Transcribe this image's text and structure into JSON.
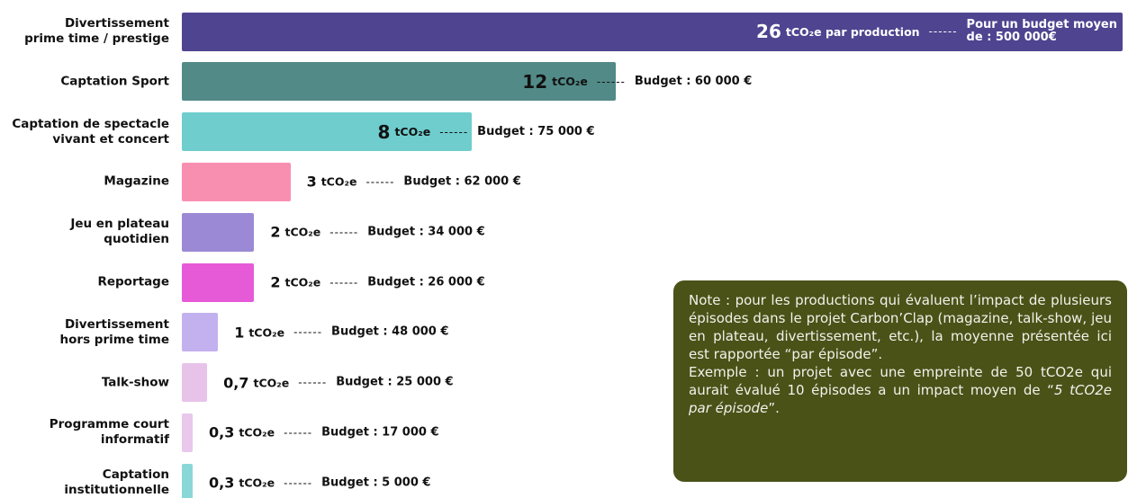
{
  "chart_data": {
    "type": "bar",
    "orientation": "horizontal",
    "categories": [
      "Divertissement\nprime time / prestige",
      "Captation Sport",
      "Captation de spectacle\nvivant et concert",
      "Magazine",
      "Jeu en plateau\nquotidien",
      "Reportage",
      "Divertissement\nhors prime time",
      "Talk-show",
      "Programme court\ninformatif",
      "Captation\ninstitutionnelle"
    ],
    "values": [
      26,
      12,
      8,
      3,
      2,
      2,
      1,
      0.7,
      0.3,
      0.3
    ],
    "value_labels": [
      "26",
      "12",
      "8",
      "3",
      "2",
      "2",
      "1",
      "0,7",
      "0,3",
      "0,3"
    ],
    "unit_labels": [
      "tCO₂e par production",
      "tCO₂e",
      "tCO₂e",
      "tCO₂e",
      "tCO₂e",
      "tCO₂e",
      "tCO₂e",
      "tCO₂e",
      "tCO₂e",
      "tCO₂e"
    ],
    "budgets": [
      "Pour un budget moyen\nde : 500 000€",
      "Budget : 60 000 €",
      "Budget : 75 000 €",
      "Budget : 62 000 €",
      "Budget : 34 000 €",
      "Budget : 26 000 €",
      "Budget : 48 000 €",
      "Budget : 25 000 €",
      "Budget : 17 000 €",
      "Budget : 5 000 €"
    ],
    "colors": [
      "#4f4490",
      "#528a87",
      "#6fcdcd",
      "#f98fb0",
      "#9b89d5",
      "#e65ad8",
      "#c2b1ee",
      "#e8c3e9",
      "#e9c8ec",
      "#8ad7d8"
    ],
    "xlim": [
      0,
      26
    ]
  },
  "note": {
    "text": "Note : pour les productions qui évaluent l’impact de plusieurs épisodes dans le projet Carbon’Clap (magazine, talk-show, jeu en plateau, divertissement, etc.), la moyenne présentée ici est rapportée “par épisode”.",
    "example": "Exemple : un projet avec une empreinte de 50 tCO2e qui aurait évalué 10 épisodes a un impact moyen de “",
    "example_italic": "5 tCO2e par épisode",
    "example_end": "”."
  }
}
